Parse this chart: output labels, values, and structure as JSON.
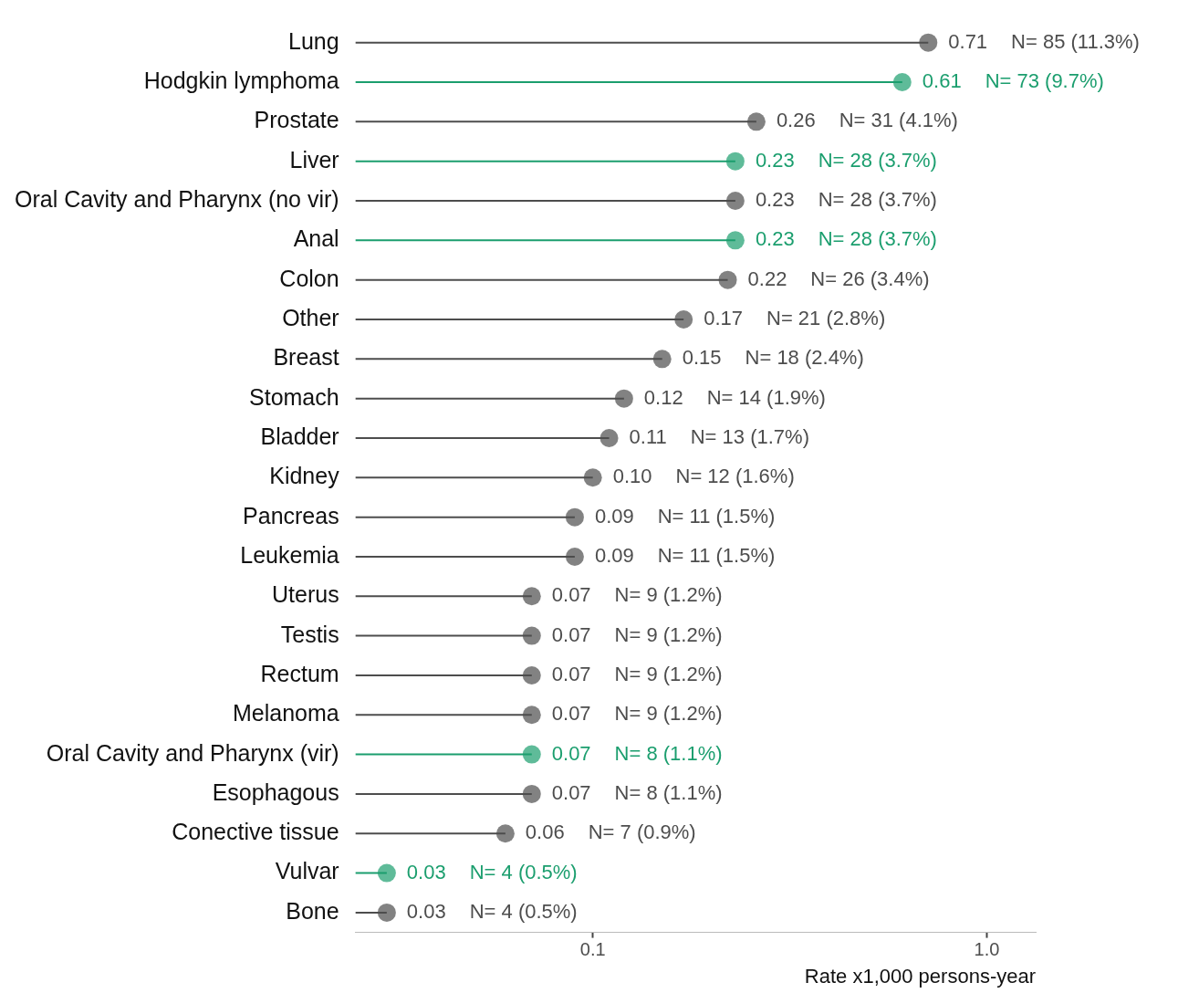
{
  "chart_data": {
    "type": "lollipop",
    "orientation": "horizontal",
    "log": "x",
    "xlabel": "Rate x1,000 persons-year",
    "categories": [
      "Lung",
      "Hodgkin lymphoma",
      "Prostate",
      "Liver",
      "Oral Cavity and Pharynx (no vir)",
      "Anal",
      "Colon",
      "Other",
      "Breast",
      "Stomach",
      "Bladder",
      "Kidney",
      "Pancreas",
      "Leukemia",
      "Uterus",
      "Testis",
      "Rectum",
      "Melanoma",
      "Oral Cavity and Pharynx (vir)",
      "Esophagous",
      "Conective tissue",
      "Vulvar",
      "Bone"
    ],
    "values": [
      0.71,
      0.61,
      0.26,
      0.23,
      0.23,
      0.23,
      0.22,
      0.17,
      0.15,
      0.12,
      0.11,
      0.1,
      0.09,
      0.09,
      0.07,
      0.07,
      0.07,
      0.07,
      0.07,
      0.07,
      0.06,
      0.03,
      0.03
    ],
    "colors": [
      "#4d4d4d",
      "#1b9e6e",
      "#4d4d4d",
      "#1b9e6e",
      "#4d4d4d",
      "#1b9e6e",
      "#4d4d4d",
      "#4d4d4d",
      "#4d4d4d",
      "#4d4d4d",
      "#4d4d4d",
      "#4d4d4d",
      "#4d4d4d",
      "#4d4d4d",
      "#4d4d4d",
      "#4d4d4d",
      "#4d4d4d",
      "#4d4d4d",
      "#1b9e6e",
      "#4d4d4d",
      "#4d4d4d",
      "#1b9e6e",
      "#4d4d4d"
    ],
    "value_labels": [
      "0.71 N= 85 (11.3%)",
      "0.61 N= 73 (9.7%)",
      "0.26 N= 31 (4.1%)",
      "0.23 N= 28 (3.7%)",
      "0.23 N= 28 (3.7%)",
      "0.23 N= 28 (3.7%)",
      "0.22 N= 26 (3.4%)",
      "0.17 N= 21 (2.8%)",
      "0.15 N= 18 (2.4%)",
      "0.12 N= 14 (1.9%)",
      "0.11 N= 13 (1.7%)",
      "0.10 N= 12 (1.6%)",
      "0.09 N= 11 (1.5%)",
      "0.09 N= 11 (1.5%)",
      "0.07 N= 9 (1.2%)",
      "0.07 N= 9 (1.2%)",
      "0.07 N= 9 (1.2%)",
      "0.07 N= 9 (1.2%)",
      "0.07 N= 8 (1.1%)",
      "0.07 N= 8 (1.1%)",
      "0.06 N= 7 (0.9%)",
      "0.03 N= 4 (0.5%)",
      "0.03 N= 4 (0.5%)"
    ],
    "xlim": [
      0.025,
      1.33
    ],
    "xticks": [
      {
        "value": 0.1,
        "label": "0.1"
      },
      {
        "value": 1,
        "label": "1.0"
      }
    ],
    "grid": false,
    "legend": false,
    "marker": "circle"
  }
}
